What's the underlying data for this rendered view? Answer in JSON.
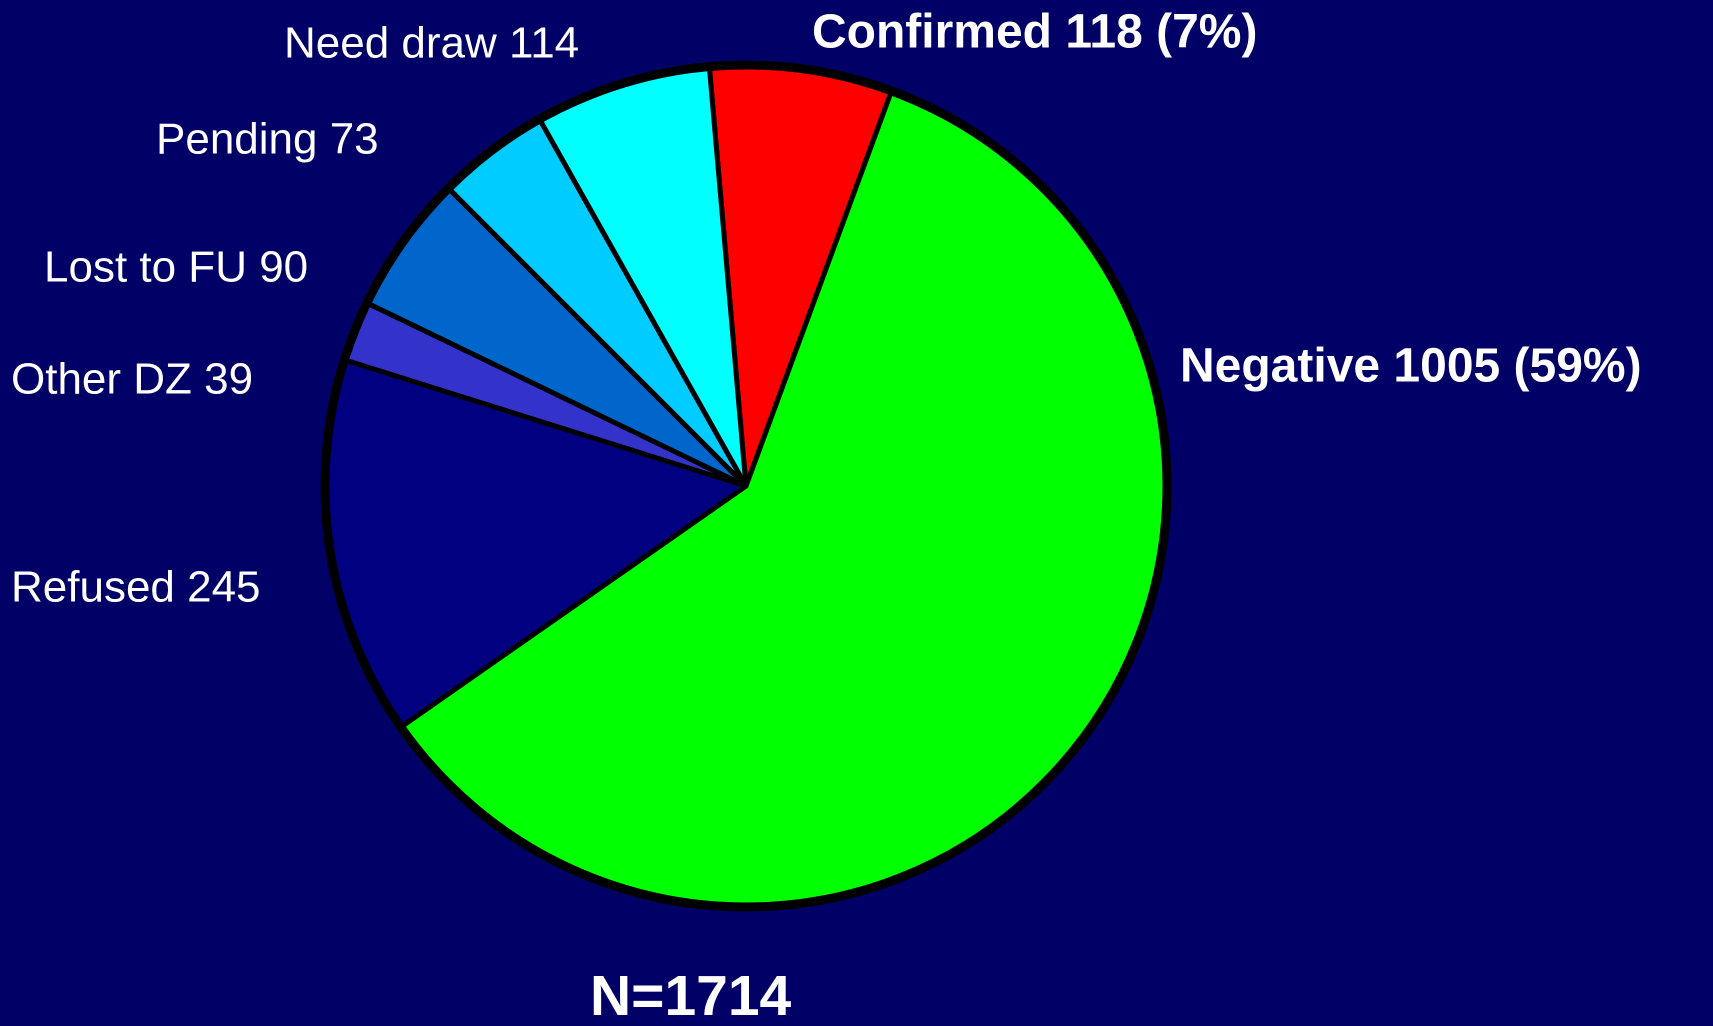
{
  "chart_data": {
    "type": "pie",
    "categories": [
      "Confirmed",
      "Negative",
      "Refused",
      "Other DZ",
      "Lost to FU",
      "Pending",
      "Need draw"
    ],
    "values": [
      118,
      1005,
      245,
      39,
      90,
      73,
      114
    ],
    "value_labels": [
      "Confirmed 118  (7%)",
      "Negative 1005  (59%)",
      "Refused 245",
      "Other DZ 39",
      "Lost to FU 90",
      "Pending 73",
      "Need draw 114"
    ],
    "colors": [
      "#ff0000",
      "#00ff00",
      "#000080",
      "#3333cc",
      "#0066cc",
      "#00ccff",
      "#00ffff"
    ],
    "annotation": "N=1714",
    "annotation_color": "#ffff00"
  }
}
